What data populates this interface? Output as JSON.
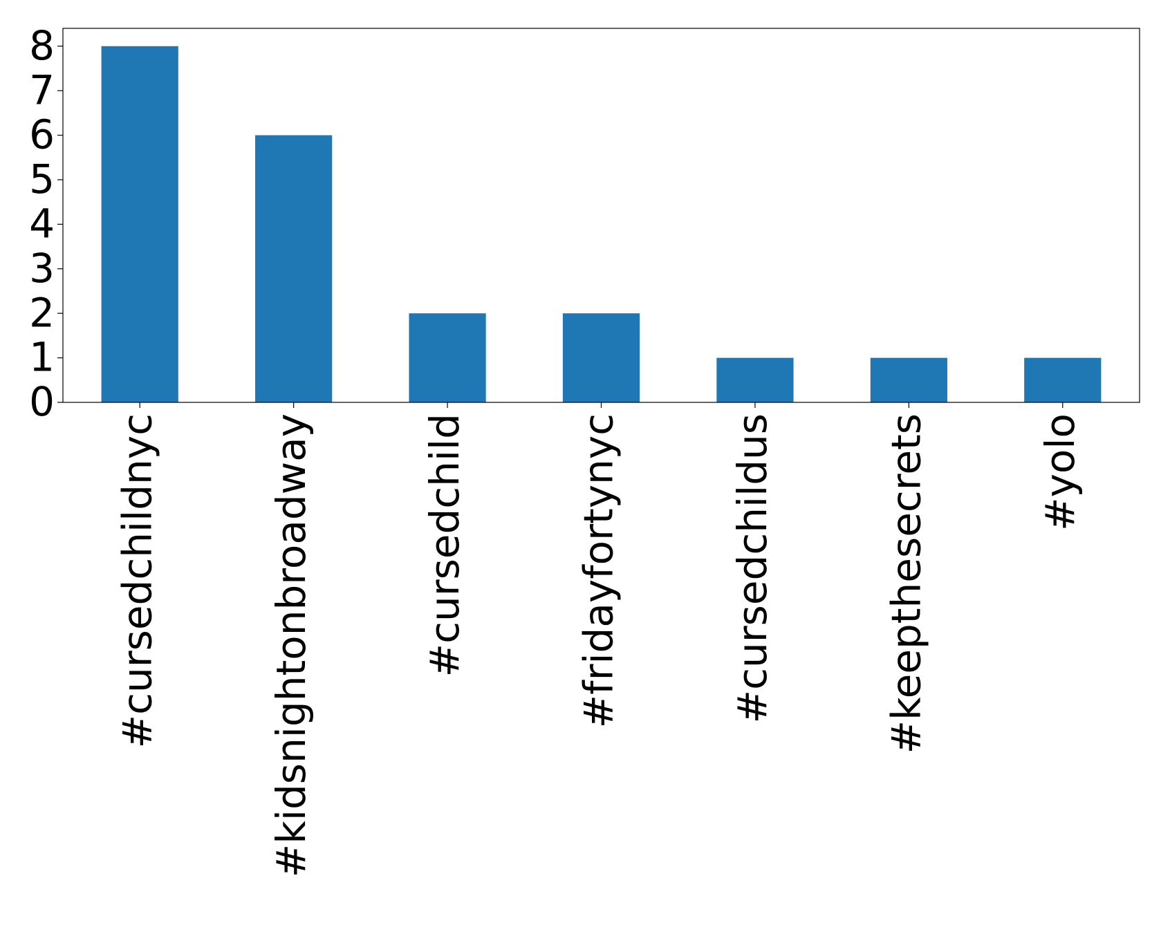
{
  "chart_data": {
    "type": "bar",
    "categories": [
      "#cursedchildnyc",
      "#kidsnightonbroadway",
      "#cursedchild",
      "#fridayfortynyc",
      "#cursedchildus",
      "#keepthesecrets",
      "#yolo"
    ],
    "values": [
      8,
      6,
      2,
      2,
      1,
      1,
      1
    ],
    "color": "#1f77b4",
    "ylim": [
      0,
      8.4
    ],
    "yticks": [
      0,
      1,
      2,
      3,
      4,
      5,
      6,
      7,
      8
    ],
    "grid": false
  }
}
